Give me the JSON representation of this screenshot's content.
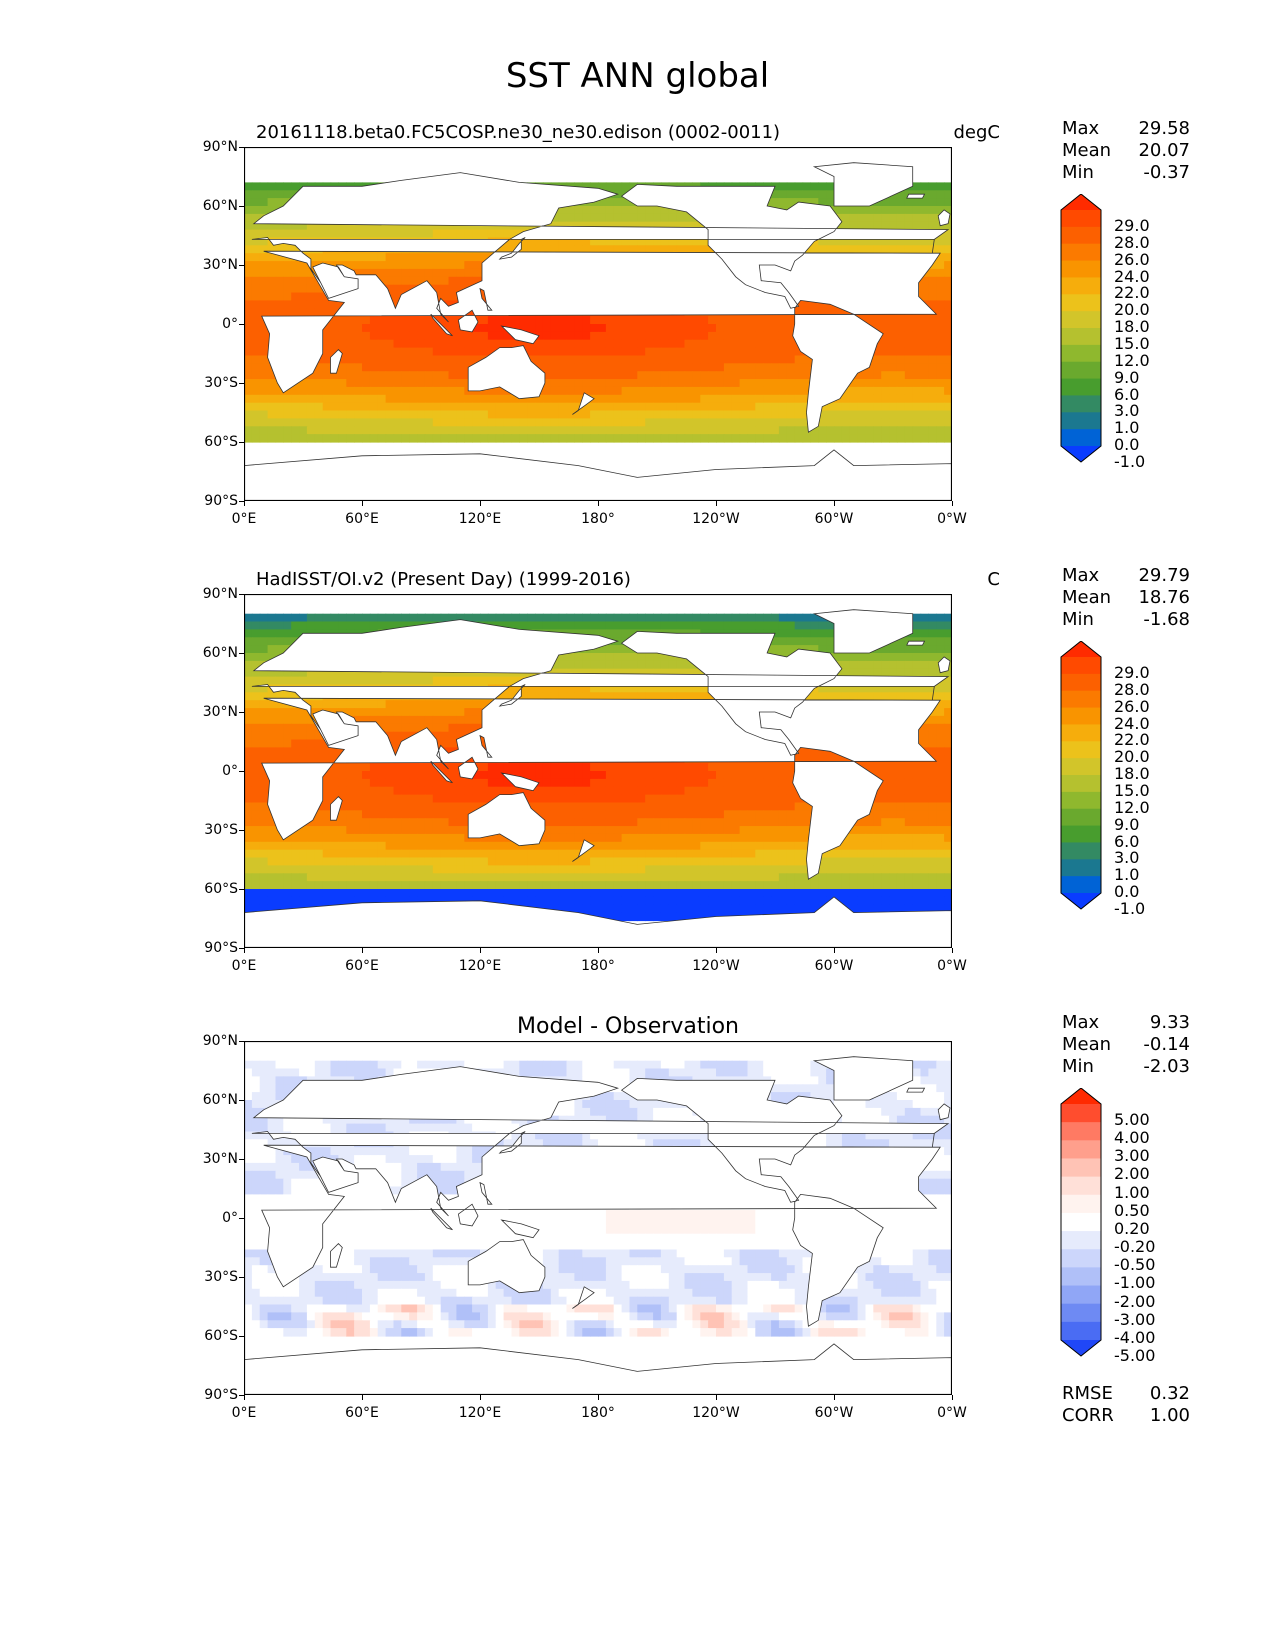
{
  "title": "SST ANN global",
  "chart_data": [
    {
      "type": "heatmap",
      "title_left": "20161118.beta0.FC5COSP.ne30_ne30.edison (0002-0011)",
      "title_right": "degC",
      "title_center": "",
      "x_ticks": [
        "0°E",
        "60°E",
        "120°E",
        "180°",
        "120°W",
        "60°W",
        "0°W"
      ],
      "y_ticks": [
        "90°N",
        "60°N",
        "30°N",
        "0°",
        "30°S",
        "60°S",
        "90°S"
      ],
      "xlim": [
        0,
        360
      ],
      "ylim": [
        -90,
        90
      ],
      "stats": {
        "max_label": "Max",
        "max": "29.58",
        "mean_label": "Mean",
        "mean": "20.07",
        "min_label": "Min",
        "min": "-0.37"
      },
      "colorbar": {
        "labels": [
          "29.0",
          "28.0",
          "26.0",
          "24.0",
          "22.0",
          "20.0",
          "18.0",
          "15.0",
          "12.0",
          "9.0",
          "6.0",
          "3.0",
          "1.0",
          "0.0",
          "-1.0"
        ],
        "colors": [
          "#ff2b00",
          "#ff4a00",
          "#fc6000",
          "#fb7a00",
          "#f99400",
          "#f6ad0c",
          "#ecc21b",
          "#d2c52a",
          "#b5c12f",
          "#8fb82e",
          "#6aa92e",
          "#489d2e",
          "#338a63",
          "#1b7890",
          "#0063d6",
          "#0a3cff"
        ]
      },
      "field_kind": "sst",
      "ice_south_lat": -56,
      "ice_north_lat": 72
    },
    {
      "type": "heatmap",
      "title_left": "HadISST/OI.v2 (Present Day) (1999-2016)",
      "title_right": "C",
      "title_center": "",
      "x_ticks": [
        "0°E",
        "60°E",
        "120°E",
        "180°",
        "120°W",
        "60°W",
        "0°W"
      ],
      "y_ticks": [
        "90°N",
        "60°N",
        "30°N",
        "0°",
        "30°S",
        "60°S",
        "90°S"
      ],
      "xlim": [
        0,
        360
      ],
      "ylim": [
        -90,
        90
      ],
      "stats": {
        "max_label": "Max",
        "max": "29.79",
        "mean_label": "Mean",
        "mean": "18.76",
        "min_label": "Min",
        "min": "-1.68"
      },
      "colorbar": {
        "labels": [
          "29.0",
          "28.0",
          "26.0",
          "24.0",
          "22.0",
          "20.0",
          "18.0",
          "15.0",
          "12.0",
          "9.0",
          "6.0",
          "3.0",
          "1.0",
          "0.0",
          "-1.0"
        ],
        "colors": [
          "#ff2b00",
          "#ff4a00",
          "#fc6000",
          "#fb7a00",
          "#f99400",
          "#f6ad0c",
          "#ecc21b",
          "#d2c52a",
          "#b5c12f",
          "#8fb82e",
          "#6aa92e",
          "#489d2e",
          "#338a63",
          "#1b7890",
          "#0063d6",
          "#0a3cff"
        ]
      },
      "field_kind": "sst",
      "ice_south_lat": -72,
      "ice_north_lat": 80
    },
    {
      "type": "heatmap",
      "title_left": "",
      "title_right": "",
      "title_center": "Model - Observation",
      "x_ticks": [
        "0°E",
        "60°E",
        "120°E",
        "180°",
        "120°W",
        "60°W",
        "0°W"
      ],
      "y_ticks": [
        "90°N",
        "60°N",
        "30°N",
        "0°",
        "30°S",
        "60°S",
        "90°S"
      ],
      "xlim": [
        0,
        360
      ],
      "ylim": [
        -90,
        90
      ],
      "stats": {
        "max_label": "Max",
        "max": "9.33",
        "mean_label": "Mean",
        "mean": "-0.14",
        "min_label": "Min",
        "min": "-2.03"
      },
      "colorbar": {
        "labels": [
          "5.00",
          "4.00",
          "3.00",
          "2.00",
          "1.00",
          "0.50",
          "0.20",
          "-0.20",
          "-0.50",
          "-1.00",
          "-2.00",
          "-3.00",
          "-4.00",
          "-5.00"
        ],
        "colors": [
          "#ff2a00",
          "#ff4d2e",
          "#ff7a63",
          "#ff9f8c",
          "#ffc3b5",
          "#ffe0d8",
          "#fff3ef",
          "#ffffff",
          "#e6ebfc",
          "#ccd6fb",
          "#b0c0f8",
          "#90a6f6",
          "#6e8af3",
          "#4a6cf3",
          "#2047f7"
        ]
      },
      "field_kind": "diff",
      "ice_south_lat": -58,
      "ice_north_lat": 80,
      "metrics": {
        "rmse_label": "RMSE",
        "rmse": "0.32",
        "corr_label": "CORR",
        "corr": "1.00"
      }
    }
  ]
}
